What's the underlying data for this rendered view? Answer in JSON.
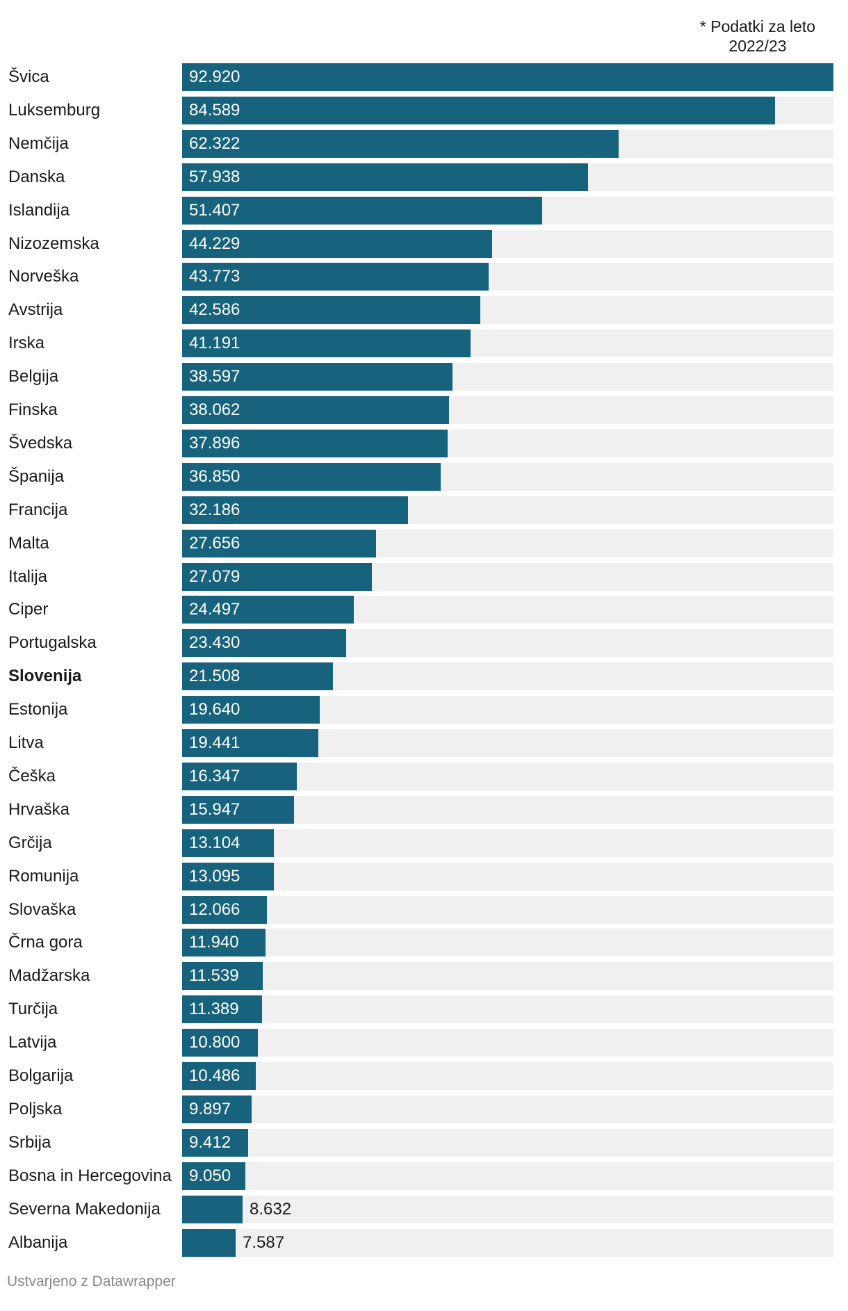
{
  "note": [
    "* Podatki za leto",
    "2022/23"
  ],
  "footer": "Ustvarjeno z Datawrapper",
  "colors": {
    "bar": "#17627c",
    "track": "#f0f0f0"
  },
  "chart_data": {
    "type": "bar",
    "orientation": "horizontal",
    "title": "",
    "xlabel": "",
    "ylabel": "",
    "xlim": [
      0,
      92920
    ],
    "highlight": "Slovenija",
    "categories": [
      "Švica",
      "Luksemburg",
      "Nemčija",
      "Danska",
      "Islandija",
      "Nizozemska",
      "Norveška",
      "Avstrija",
      "Irska",
      "Belgija",
      "Finska",
      "Švedska",
      "Španija",
      "Francija",
      "Malta",
      "Italija",
      "Ciper",
      "Portugalska",
      "Slovenija",
      "Estonija",
      "Litva",
      "Češka",
      "Hrvaška",
      "Grčija",
      "Romunija",
      "Slovaška",
      "Črna gora",
      "Madžarska",
      "Turčija",
      "Latvija",
      "Bolgarija",
      "Poljska",
      "Srbija",
      "Bosna in Hercegovina",
      "Severna Makedonija",
      "Albanija"
    ],
    "values": [
      92920,
      84589,
      62322,
      57938,
      51407,
      44229,
      43773,
      42586,
      41191,
      38597,
      38062,
      37896,
      36850,
      32186,
      27656,
      27079,
      24497,
      23430,
      21508,
      19640,
      19441,
      16347,
      15947,
      13104,
      13095,
      12066,
      11940,
      11539,
      11389,
      10800,
      10486,
      9897,
      9412,
      9050,
      8632,
      7587
    ],
    "value_labels": [
      "92.920",
      "84.589",
      "62.322",
      "57.938",
      "51.407",
      "44.229",
      "43.773",
      "42.586",
      "41.191",
      "38.597",
      "38.062",
      "37.896",
      "36.850",
      "32.186",
      "27.656",
      "27.079",
      "24.497",
      "23.430",
      "21.508",
      "19.640",
      "19.441",
      "16.347",
      "15.947",
      "13.104",
      "13.095",
      "12.066",
      "11.940",
      "11.539",
      "11.389",
      "10.800",
      "10.486",
      "9.897",
      "9.412",
      "9.050",
      "8.632",
      "7.587"
    ]
  }
}
